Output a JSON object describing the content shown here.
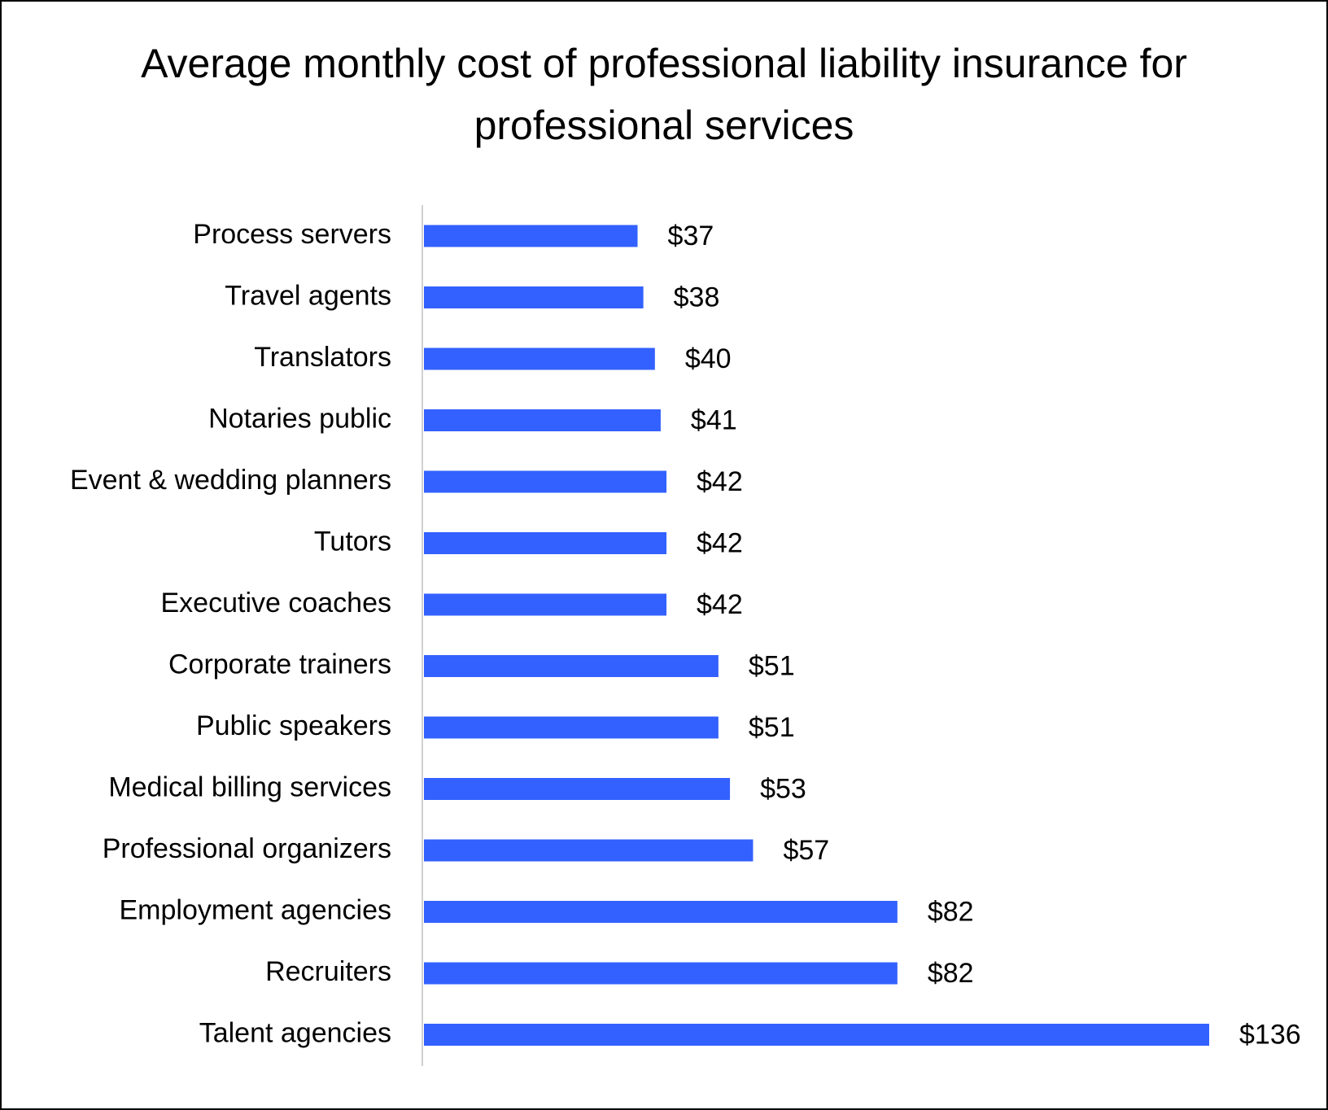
{
  "chart_data": {
    "type": "hbar",
    "title": "Average monthly cost of professional liability insurance for professional services",
    "categories": [
      "Process servers",
      "Travel agents",
      "Translators",
      "Notaries public",
      "Event & wedding planners",
      "Tutors",
      "Executive coaches",
      "Corporate trainers",
      "Public speakers",
      "Medical billing services",
      "Professional organizers",
      "Employment agencies",
      "Recruiters",
      "Talent agencies"
    ],
    "values": [
      37,
      38,
      40,
      41,
      42,
      42,
      42,
      51,
      51,
      53,
      57,
      82,
      82,
      136
    ],
    "value_labels": [
      "$37",
      "$38",
      "$40",
      "$41",
      "$42",
      "$42",
      "$42",
      "$51",
      "$51",
      "$53",
      "$57",
      "$82",
      "$82",
      "$136"
    ],
    "color": "#3361ff"
  }
}
